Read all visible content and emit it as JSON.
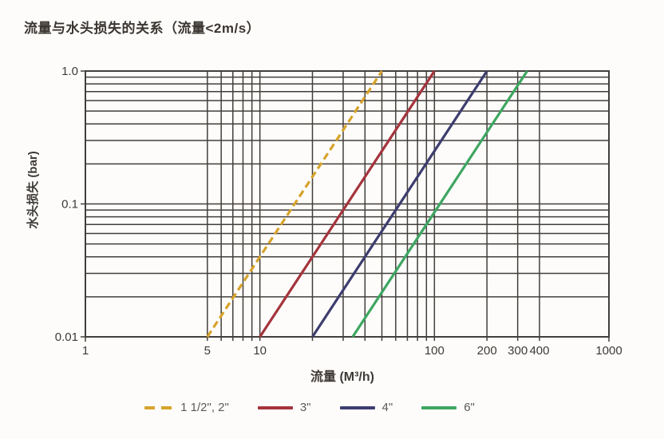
{
  "chart_data": {
    "type": "line",
    "title": "流量与水头损失的关系（流量<2m/s）",
    "xlabel": "流量 (M³/h)",
    "ylabel": "水头损失 (bar)",
    "x_scale": "log",
    "y_scale": "log",
    "xlim": [
      1,
      1000
    ],
    "ylim": [
      0.01,
      1.0
    ],
    "grid": "on",
    "grid_color": "#423e3b",
    "axis_text_color": "#3e3a37",
    "legend_position": "bottom",
    "x_ticks": [
      {
        "value": 1,
        "label": "1"
      },
      {
        "value": 5,
        "label": "5"
      },
      {
        "value": 10,
        "label": "10"
      },
      {
        "value": 100,
        "label": "100"
      },
      {
        "value": 200,
        "label": "200"
      },
      {
        "value": 300,
        "label": "300"
      },
      {
        "value": 400,
        "label": "400"
      },
      {
        "value": 1000,
        "label": "1000"
      }
    ],
    "y_ticks": [
      {
        "value": 1.0,
        "label": "1.0"
      },
      {
        "value": 0.1,
        "label": "0.1"
      },
      {
        "value": 0.01,
        "label": "0.01"
      }
    ],
    "x_gridlines": [
      5,
      6,
      7,
      8,
      9,
      10,
      20,
      30,
      40,
      50,
      60,
      70,
      80,
      90,
      100,
      200,
      300,
      400
    ],
    "y_gridlines": [
      1.0,
      0.9,
      0.8,
      0.7,
      0.6,
      0.5,
      0.4,
      0.3,
      0.2,
      0.1,
      0.09,
      0.08,
      0.07,
      0.06,
      0.05,
      0.04,
      0.03,
      0.02
    ],
    "series": [
      {
        "name": "1 1/2\", 2\"",
        "color": "#D7A32B",
        "style": "dashed",
        "points": [
          [
            5,
            0.01
          ],
          [
            50,
            1.0
          ]
        ]
      },
      {
        "name": "3\"",
        "color": "#A4343C",
        "style": "solid",
        "points": [
          [
            10,
            0.01
          ],
          [
            100,
            1.0
          ]
        ]
      },
      {
        "name": "4\"",
        "color": "#3D3D6F",
        "style": "solid",
        "points": [
          [
            20,
            0.01
          ],
          [
            200,
            1.0
          ]
        ]
      },
      {
        "name": "6\"",
        "color": "#3EA661",
        "style": "solid",
        "points": [
          [
            34,
            0.01
          ],
          [
            340,
            1.0
          ]
        ]
      }
    ]
  }
}
